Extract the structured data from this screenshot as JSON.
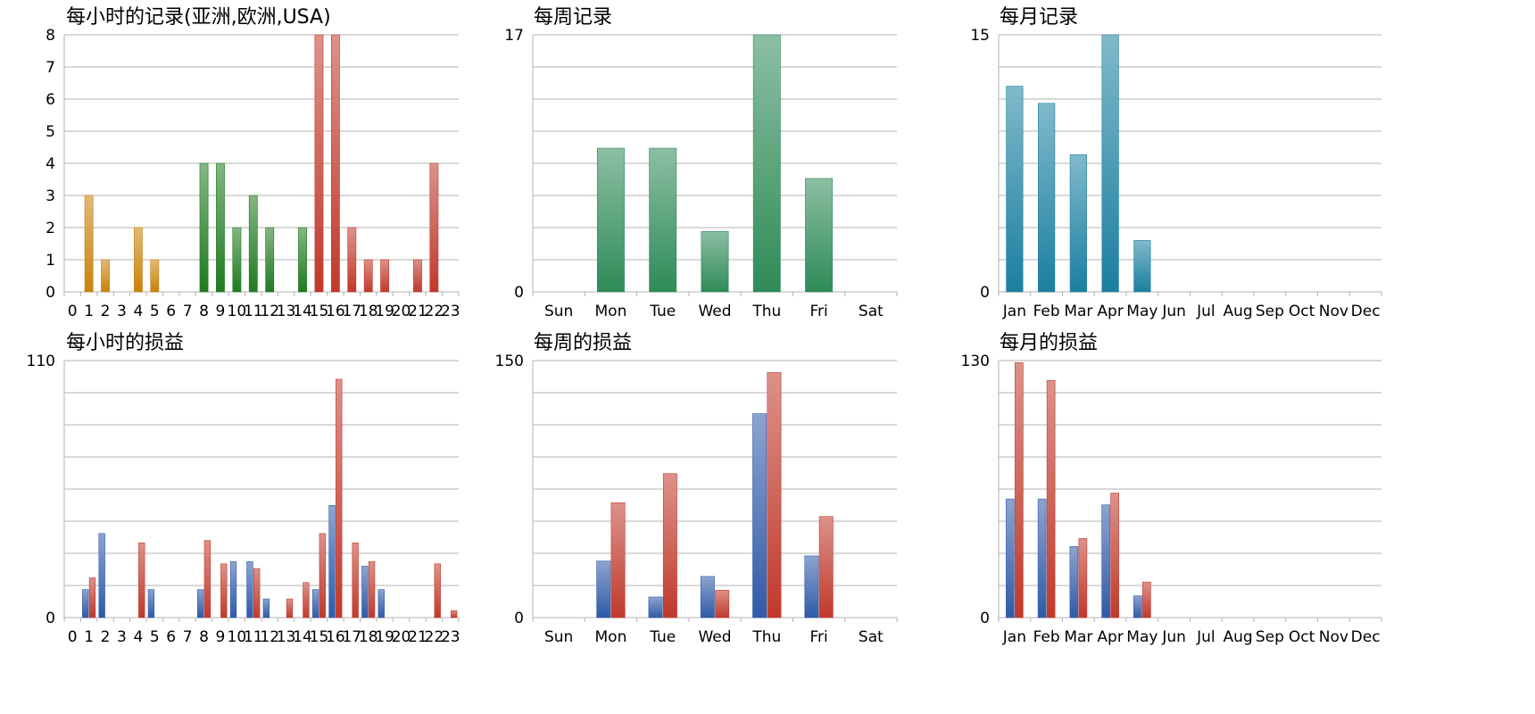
{
  "chart_data": [
    {
      "type": "bar",
      "title": "每小时的记录(亚洲,欧洲,USA)",
      "categories": [
        "0",
        "1",
        "2",
        "3",
        "4",
        "5",
        "6",
        "7",
        "8",
        "9",
        "10",
        "11",
        "12",
        "13",
        "14",
        "15",
        "16",
        "17",
        "18",
        "19",
        "20",
        "21",
        "22",
        "23"
      ],
      "values": [
        0,
        3,
        1,
        0,
        2,
        1,
        0,
        0,
        4,
        4,
        2,
        3,
        2,
        0,
        2,
        8,
        8,
        2,
        1,
        1,
        0,
        1,
        4,
        0
      ],
      "bar_colors": [
        "#c8820a",
        "#c8820a",
        "#c8820a",
        "#c8820a",
        "#c8820a",
        "#c8820a",
        "#c8820a",
        "#c8820a",
        "#1f7a1f",
        "#1f7a1f",
        "#1f7a1f",
        "#1f7a1f",
        "#1f7a1f",
        "#1f7a1f",
        "#1f7a1f",
        "#c0392b",
        "#c0392b",
        "#c0392b",
        "#c0392b",
        "#c0392b",
        "#c0392b",
        "#c0392b",
        "#c0392b",
        "#c0392b"
      ],
      "ylim": [
        0,
        8
      ],
      "yticks": [
        0,
        1,
        2,
        3,
        4,
        5,
        6,
        7,
        8
      ],
      "grid": true,
      "xlabel": "",
      "ylabel": ""
    },
    {
      "type": "bar",
      "title": "每周记录",
      "categories": [
        "Sun",
        "Mon",
        "Tue",
        "Wed",
        "Thu",
        "Fri",
        "Sat"
      ],
      "values": [
        0,
        9.5,
        9.5,
        4,
        17,
        7.5,
        0
      ],
      "color": "#2e8b57",
      "ylim": [
        0,
        17
      ],
      "yticks": [
        0,
        17
      ],
      "grid": true,
      "xlabel": "",
      "ylabel": ""
    },
    {
      "type": "bar",
      "title": "每月记录",
      "categories": [
        "Jan",
        "Feb",
        "Mar",
        "Apr",
        "May",
        "Jun",
        "Jul",
        "Aug",
        "Sep",
        "Oct",
        "Nov",
        "Dec"
      ],
      "values": [
        12,
        11,
        8,
        15,
        3,
        0,
        0,
        0,
        0,
        0,
        0,
        0
      ],
      "color": "#1a7fa0",
      "ylim": [
        0,
        15
      ],
      "yticks": [
        0,
        15
      ],
      "grid": true,
      "xlabel": "",
      "ylabel": ""
    },
    {
      "type": "bar",
      "title": "每小时的损益",
      "categories": [
        "0",
        "1",
        "2",
        "3",
        "4",
        "5",
        "6",
        "7",
        "8",
        "9",
        "10",
        "11",
        "12",
        "13",
        "14",
        "15",
        "16",
        "17",
        "18",
        "19",
        "20",
        "21",
        "22",
        "23"
      ],
      "series": [
        {
          "values": [
            0,
            12,
            36,
            0,
            0,
            12,
            0,
            0,
            12,
            0,
            24,
            24,
            8,
            0,
            0,
            12,
            48,
            0,
            22,
            12,
            0,
            0,
            0,
            0
          ],
          "color": "#2f5aa8"
        },
        {
          "values": [
            0,
            17,
            0,
            0,
            32,
            0,
            0,
            0,
            33,
            23,
            0,
            21,
            0,
            8,
            15,
            36,
            102,
            32,
            24,
            0,
            0,
            0,
            23,
            3
          ],
          "color": "#c0392b"
        }
      ],
      "ylim": [
        0,
        110
      ],
      "yticks": [
        0,
        110
      ],
      "grid": true,
      "xlabel": "",
      "ylabel": ""
    },
    {
      "type": "bar",
      "title": "每周的损益",
      "categories": [
        "Sun",
        "Mon",
        "Tue",
        "Wed",
        "Thu",
        "Fri",
        "Sat"
      ],
      "series": [
        {
          "values": [
            0,
            33,
            12,
            24,
            119,
            36,
            0
          ],
          "color": "#2f5aa8"
        },
        {
          "values": [
            0,
            67,
            84,
            16,
            143,
            59,
            0
          ],
          "color": "#c0392b"
        }
      ],
      "ylim": [
        0,
        150
      ],
      "yticks": [
        0,
        150
      ],
      "grid": true,
      "xlabel": "",
      "ylabel": ""
    },
    {
      "type": "bar",
      "title": "每月的损益",
      "categories": [
        "Jan",
        "Feb",
        "Mar",
        "Apr",
        "May",
        "Jun",
        "Jul",
        "Aug",
        "Sep",
        "Oct",
        "Nov",
        "Dec"
      ],
      "series": [
        {
          "values": [
            60,
            60,
            36,
            57,
            11,
            0,
            0,
            0,
            0,
            0,
            0,
            0
          ],
          "color": "#2f5aa8"
        },
        {
          "values": [
            129,
            120,
            40,
            63,
            18,
            0,
            0,
            0,
            0,
            0,
            0,
            0
          ],
          "color": "#c0392b"
        }
      ],
      "ylim": [
        0,
        130
      ],
      "yticks": [
        0,
        130
      ],
      "grid": true,
      "xlabel": "",
      "ylabel": ""
    }
  ]
}
